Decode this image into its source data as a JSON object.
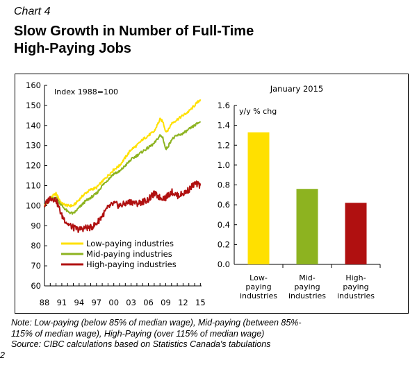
{
  "header": {
    "chart_label": "Chart 4",
    "title_line1": "Slow Growth in Number of Full-Time",
    "title_line2": "High-Paying Jobs"
  },
  "chart_data": [
    {
      "type": "line",
      "annotation": "Index 1988=100",
      "ylim": [
        60,
        160
      ],
      "yticks": [
        "60",
        "70",
        "80",
        "90",
        "100",
        "110",
        "120",
        "130",
        "140",
        "150",
        "160"
      ],
      "xlim": [
        1988,
        2015.2
      ],
      "xticks": [
        "88",
        "91",
        "94",
        "97",
        "00",
        "03",
        "06",
        "09",
        "12",
        "15"
      ],
      "grid": false,
      "legend": "bottom-left",
      "series": [
        {
          "name": "Low-paying industries",
          "color": "#ffe000",
          "x": [
            1988,
            1989,
            1990,
            1991,
            1992,
            1993,
            1994,
            1995,
            1996,
            1997,
            1998,
            1999,
            2000,
            2001,
            2002,
            2003,
            2004,
            2005,
            2006,
            2007,
            2008,
            2008.5,
            2009,
            2009.5,
            2010,
            2011,
            2012,
            2013,
            2014,
            2015
          ],
          "y": [
            100,
            104,
            106,
            101,
            100,
            100,
            103,
            106,
            108,
            109,
            112,
            115,
            118,
            120,
            124,
            128,
            130,
            133,
            135,
            137,
            143,
            142,
            137,
            138,
            141,
            143,
            145,
            147,
            150,
            153
          ]
        },
        {
          "name": "Mid-paying industries",
          "color": "#8db320",
          "x": [
            1988,
            1989,
            1990,
            1991,
            1992,
            1993,
            1994,
            1995,
            1996,
            1997,
            1998,
            1999,
            2000,
            2001,
            2002,
            2003,
            2004,
            2005,
            2006,
            2007,
            2008,
            2008.5,
            2009,
            2009.5,
            2010,
            2011,
            2012,
            2013,
            2014,
            2015
          ],
          "y": [
            100,
            103,
            104,
            100,
            97,
            96,
            99,
            102,
            104,
            106,
            110,
            113,
            116,
            117,
            120,
            123,
            125,
            127,
            129,
            131,
            135,
            134,
            128,
            130,
            133,
            135,
            136,
            138,
            140,
            142
          ]
        },
        {
          "name": "High-paying industries",
          "color": "#b01010",
          "x": [
            1988,
            1989,
            1990,
            1991,
            1992,
            1993,
            1994,
            1995,
            1996,
            1997,
            1998,
            1999,
            2000,
            2001,
            2002,
            2003,
            2004,
            2005,
            2006,
            2007,
            2008,
            2009,
            2010,
            2011,
            2012,
            2013,
            2014,
            2015
          ],
          "y": [
            100,
            104,
            103,
            95,
            91,
            89,
            88,
            89,
            89,
            91,
            95,
            99,
            101,
            100,
            101,
            102,
            101,
            102,
            103,
            106,
            104,
            104,
            107,
            105,
            106,
            108,
            111,
            110
          ]
        }
      ]
    },
    {
      "type": "bar",
      "title": "January 2015",
      "ylabel": "y/y % chg",
      "ylim": [
        0,
        1.6
      ],
      "yticks": [
        "0.0",
        "0.2",
        "0.4",
        "0.6",
        "0.8",
        "1.0",
        "1.2",
        "1.4",
        "1.6"
      ],
      "categories": [
        [
          "Low-",
          "paying",
          "industries"
        ],
        [
          "Mid-",
          "paying",
          "industries"
        ],
        [
          "High-",
          "paying",
          "industries"
        ]
      ],
      "values": [
        1.33,
        0.76,
        0.62
      ],
      "colors": [
        "#ffe000",
        "#8db320",
        "#b01010"
      ]
    }
  ],
  "notes": {
    "line1": "Note: Low-paying (below 85% of median wage), Mid-paying (between 85%-",
    "line2": "115% of median wage), High-Paying (over 115% of median wage)",
    "line3": "Source: CIBC calculations based on Statistics Canada's tabulations",
    "page_number": "2"
  }
}
